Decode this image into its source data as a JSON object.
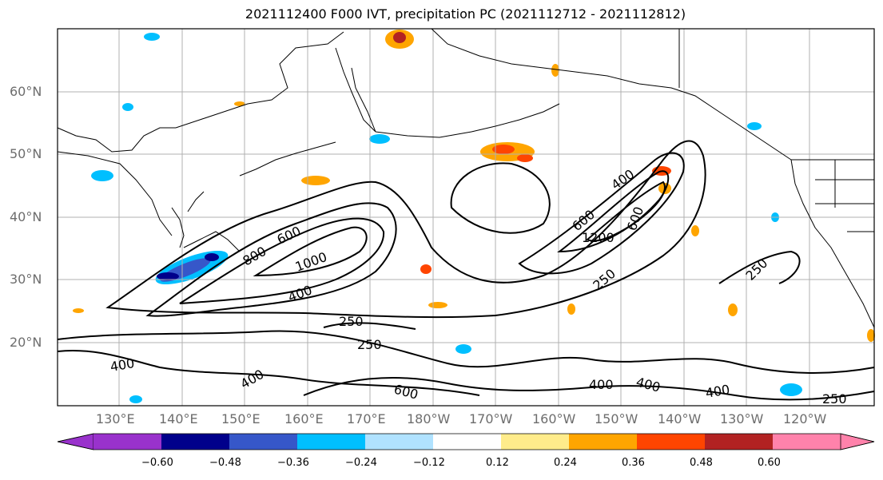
{
  "title": "2021112400 F000 IVT, precipitation PC (2021112712 - 2021112812)",
  "lat_labels": [
    "60°N",
    "50°N",
    "40°N",
    "30°N",
    "20°N"
  ],
  "lon_labels": [
    "130°E",
    "140°E",
    "150°E",
    "160°E",
    "170°E",
    "180°W",
    "170°W",
    "160°W",
    "150°W",
    "140°W",
    "130°W",
    "120°W"
  ],
  "contour_labels": [
    "800",
    "600",
    "1000",
    "400",
    "250",
    "250",
    "400",
    "600",
    "400",
    "400",
    "400",
    "250",
    "400",
    "600",
    "1200",
    "600",
    "250",
    "250",
    "200"
  ],
  "colorbar": {
    "ticks": [
      "−0.60",
      "−0.48",
      "−0.36",
      "−0.24",
      "−0.12",
      "0.12",
      "0.24",
      "0.36",
      "0.48",
      "0.60"
    ],
    "colors": [
      "#9932cc",
      "#00008b",
      "#3657c9",
      "#00bfff",
      "#b0e2ff",
      "#ffffff",
      "#ffec8b",
      "#ffa500",
      "#ff4500",
      "#b22222",
      "#ff82ab"
    ]
  }
}
